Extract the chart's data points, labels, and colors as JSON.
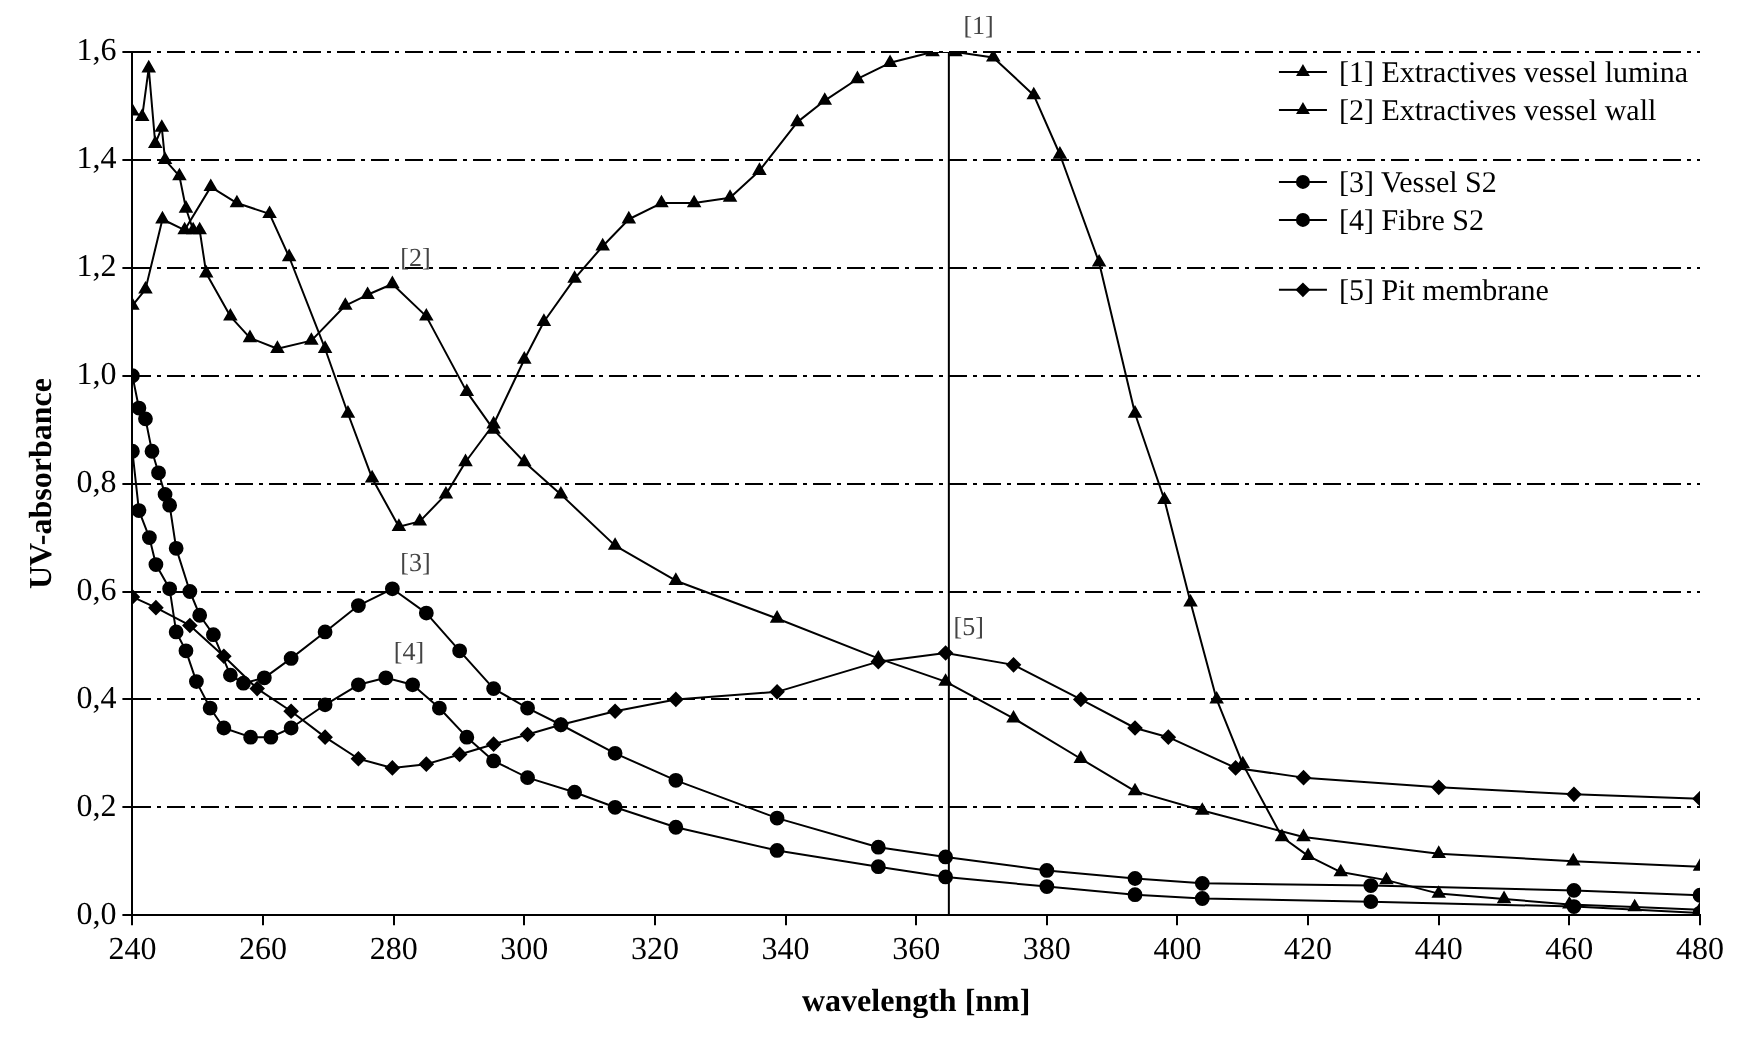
{
  "chart_data": {
    "type": "line",
    "xlabel": "wavelength [nm]",
    "ylabel": "UV-absorbance",
    "xlim": [
      240,
      480
    ],
    "xticks": [
      240,
      260,
      280,
      300,
      320,
      340,
      360,
      380,
      400,
      420,
      440,
      460,
      480
    ],
    "ylim": [
      0,
      1.6
    ],
    "yticks": [
      {
        "value": 0,
        "label": "0,0"
      },
      {
        "value": 0.2,
        "label": "0,2"
      },
      {
        "value": 0.4,
        "label": "0,4"
      },
      {
        "value": 0.6,
        "label": "0,6"
      },
      {
        "value": 0.8,
        "label": "0,8"
      },
      {
        "value": 1,
        "label": "1,0"
      },
      {
        "value": 1.2,
        "label": "1,2"
      },
      {
        "value": 1.4,
        "label": "1,4"
      },
      {
        "value": 1.6,
        "label": "1,6"
      }
    ],
    "grid": "y",
    "legend": "top right",
    "line_style": "solid",
    "ref_lines": [
      {
        "axis": "x",
        "value": 365,
        "color": "#000000"
      }
    ],
    "annotations": [
      {
        "text": "[1]",
        "x": 366,
        "y": 1.6
      },
      {
        "text": "[2]",
        "x": 279.8,
        "y": 1.17
      },
      {
        "text": "[3]",
        "x": 279.8,
        "y": 0.605
      },
      {
        "text": "[4]",
        "x": 278.8,
        "y": 0.44
      },
      {
        "text": "[5]",
        "x": 364.5,
        "y": 0.486
      }
    ],
    "series": [
      {
        "name": "[1] Extractives vessel lumina",
        "color": "#000000",
        "marker": "triangle",
        "x": [
          240,
          242,
          244.6,
          248,
          252,
          256,
          261,
          264,
          269.5,
          273,
          276.7,
          280.8,
          284,
          288,
          291,
          295.3,
          300,
          303,
          307.7,
          312,
          316,
          321,
          326,
          331.5,
          336,
          341.8,
          346,
          351,
          356,
          362.5,
          366,
          371.8,
          378,
          382,
          388,
          393.5,
          398,
          402,
          406,
          410,
          416,
          420,
          425,
          432,
          440,
          450,
          460,
          470,
          480
        ],
        "values": [
          1.13,
          1.16,
          1.29,
          1.27,
          1.35,
          1.32,
          1.3,
          1.22,
          1.05,
          0.93,
          0.81,
          0.72,
          0.73,
          0.78,
          0.84,
          0.91,
          1.03,
          1.1,
          1.18,
          1.24,
          1.29,
          1.32,
          1.32,
          1.33,
          1.38,
          1.47,
          1.51,
          1.55,
          1.58,
          1.6,
          1.6,
          1.59,
          1.52,
          1.41,
          1.21,
          0.93,
          0.77,
          0.58,
          0.4,
          0.28,
          0.145,
          0.11,
          0.08,
          0.065,
          0.04,
          0.03,
          0.02,
          0.015,
          0.01
        ]
      },
      {
        "name": "[2] Extractives vessel wall",
        "color": "#000000",
        "marker": "triangle",
        "x": [
          240,
          241.5,
          242.5,
          243.5,
          244.5,
          245,
          247.2,
          248.2,
          249.3,
          250.3,
          251.3,
          255,
          258,
          262.2,
          267.4,
          272.6,
          276,
          279.8,
          285,
          291.2,
          295.3,
          300,
          305.6,
          313.9,
          323.2,
          338.7,
          354.2,
          364.5,
          374.9,
          385.2,
          393.5,
          403.8,
          419.3,
          440,
          460.6,
          480
        ],
        "values": [
          1.49,
          1.48,
          1.57,
          1.43,
          1.46,
          1.4,
          1.37,
          1.31,
          1.27,
          1.27,
          1.19,
          1.11,
          1.07,
          1.05,
          1.065,
          1.13,
          1.15,
          1.17,
          1.11,
          0.97,
          0.9,
          0.84,
          0.78,
          0.685,
          0.62,
          0.55,
          0.476,
          0.433,
          0.365,
          0.29,
          0.23,
          0.194,
          0.145,
          0.114,
          0.1,
          0.09
        ]
      },
      {
        "name": "[3] Vessel S2",
        "color": "#000000",
        "marker": "circle",
        "x": [
          240,
          241,
          242,
          243,
          244,
          245,
          245.7,
          246.7,
          248.8,
          250.3,
          252.4,
          255,
          257,
          260.2,
          264.3,
          269.5,
          274.6,
          279.8,
          285,
          290.1,
          295.3,
          300.5,
          305.6,
          313.9,
          323.2,
          338.7,
          354.2,
          364.5,
          380,
          393.5,
          403.8,
          429.6,
          460.7,
          480
        ],
        "values": [
          1,
          0.94,
          0.92,
          0.86,
          0.82,
          0.78,
          0.76,
          0.68,
          0.6,
          0.556,
          0.52,
          0.445,
          0.43,
          0.44,
          0.476,
          0.525,
          0.574,
          0.605,
          0.56,
          0.49,
          0.42,
          0.384,
          0.353,
          0.3,
          0.25,
          0.18,
          0.126,
          0.108,
          0.083,
          0.068,
          0.059,
          0.055,
          0.046,
          0.037
        ]
      },
      {
        "name": "[4] Fibre S2",
        "color": "#000000",
        "marker": "circle",
        "x": [
          240,
          241,
          242.6,
          243.6,
          245.7,
          246.7,
          248.2,
          249.8,
          251.9,
          254,
          258.1,
          261.2,
          264.3,
          269.5,
          274.6,
          278.8,
          282.9,
          287,
          291.2,
          295.3,
          300.5,
          307.7,
          313.9,
          323.2,
          338.7,
          354.2,
          364.5,
          380,
          393.5,
          403.8,
          429.6,
          460.7,
          480
        ],
        "values": [
          0.86,
          0.75,
          0.7,
          0.65,
          0.605,
          0.525,
          0.49,
          0.433,
          0.384,
          0.347,
          0.33,
          0.33,
          0.347,
          0.39,
          0.427,
          0.44,
          0.427,
          0.384,
          0.33,
          0.286,
          0.255,
          0.228,
          0.2,
          0.163,
          0.12,
          0.09,
          0.071,
          0.053,
          0.038,
          0.031,
          0.025,
          0.016,
          0.004
        ]
      },
      {
        "name": "[5] Pit membrane",
        "color": "#000000",
        "marker": "diamond",
        "x": [
          240,
          243.6,
          248.8,
          254,
          259.1,
          264.3,
          269.5,
          274.6,
          279.8,
          285,
          290.1,
          295.3,
          300.5,
          305.6,
          313.9,
          323.2,
          338.7,
          354.2,
          364.5,
          374.9,
          385.2,
          393.5,
          398.6,
          408.9,
          419.3,
          440,
          460.7,
          480
        ],
        "values": [
          0.59,
          0.57,
          0.537,
          0.48,
          0.42,
          0.378,
          0.33,
          0.29,
          0.273,
          0.28,
          0.298,
          0.317,
          0.335,
          0.353,
          0.378,
          0.4,
          0.414,
          0.47,
          0.486,
          0.464,
          0.4,
          0.347,
          0.33,
          0.273,
          0.255,
          0.237,
          0.224,
          0.216
        ]
      }
    ]
  }
}
